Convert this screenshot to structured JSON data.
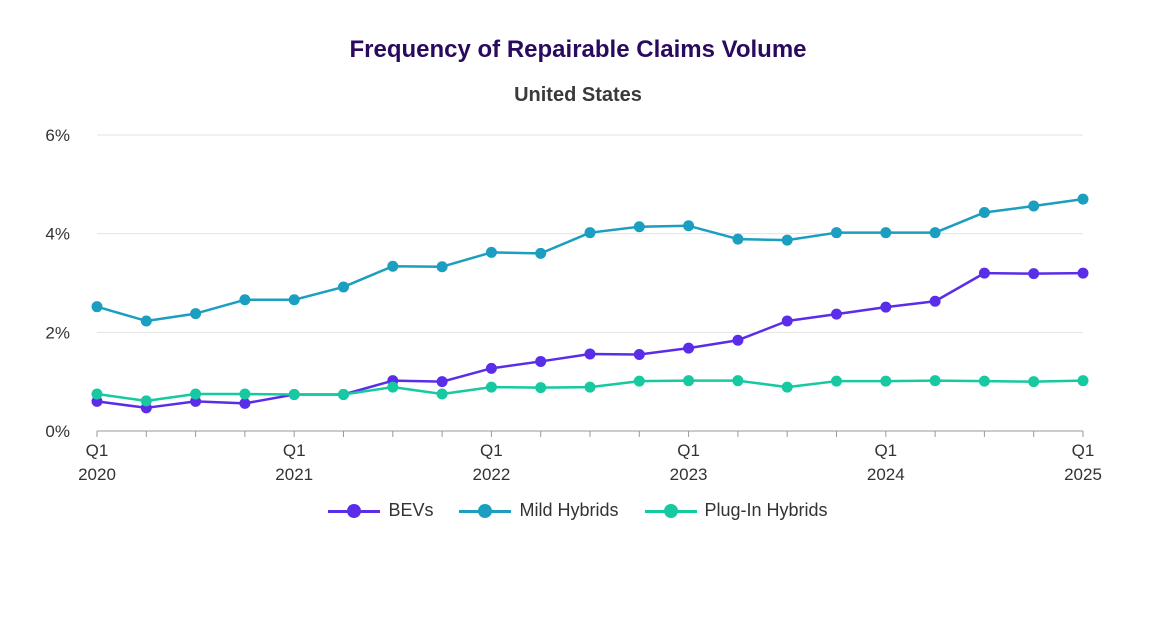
{
  "chart_data": {
    "type": "line",
    "title": "Frequency of Repairable Claims Volume",
    "subtitle": "United States",
    "x": [
      "Q1 2020",
      "Q2 2020",
      "Q3 2020",
      "Q4 2020",
      "Q1 2021",
      "Q2 2021",
      "Q3 2021",
      "Q4 2021",
      "Q1 2022",
      "Q2 2022",
      "Q3 2022",
      "Q4 2022",
      "Q1 2023",
      "Q2 2023",
      "Q3 2023",
      "Q4 2023",
      "Q1 2024",
      "Q2 2024",
      "Q3 2024",
      "Q4 2024",
      "Q1 2025"
    ],
    "x_tick_labels": [
      {
        "index": 0,
        "top": "Q1",
        "bottom": "2020"
      },
      {
        "index": 4,
        "top": "Q1",
        "bottom": "2021"
      },
      {
        "index": 8,
        "top": "Q1",
        "bottom": "2022"
      },
      {
        "index": 12,
        "top": "Q1",
        "bottom": "2023"
      },
      {
        "index": 16,
        "top": "Q1",
        "bottom": "2024"
      },
      {
        "index": 20,
        "top": "Q1",
        "bottom": "2025"
      }
    ],
    "y_ticks": [
      0,
      2,
      4,
      6
    ],
    "y_tick_labels": [
      "0%",
      "2%",
      "4%",
      "6%"
    ],
    "ylim": [
      0,
      6
    ],
    "grid": "horizontal",
    "legend_position": "bottom",
    "series": [
      {
        "name": "BEVs",
        "color": "#5a2ee8",
        "values": [
          0.6,
          0.47,
          0.6,
          0.56,
          0.74,
          0.74,
          1.02,
          1.0,
          1.27,
          1.41,
          1.56,
          1.55,
          1.68,
          1.84,
          2.23,
          2.37,
          2.51,
          2.63,
          3.2,
          3.19,
          3.2
        ]
      },
      {
        "name": "Mild Hybrids",
        "color": "#1b9ebf",
        "values": [
          2.52,
          2.23,
          2.38,
          2.66,
          2.66,
          2.92,
          3.34,
          3.33,
          3.62,
          3.6,
          4.02,
          4.14,
          4.16,
          3.89,
          3.87,
          4.02,
          4.02,
          4.02,
          4.43,
          4.56,
          4.7
        ]
      },
      {
        "name": "Plug-In Hybrids",
        "color": "#17c9a0",
        "values": [
          0.75,
          0.61,
          0.75,
          0.75,
          0.74,
          0.74,
          0.89,
          0.75,
          0.89,
          0.88,
          0.89,
          1.01,
          1.02,
          1.02,
          0.89,
          1.01,
          1.01,
          1.02,
          1.01,
          1.0,
          1.02
        ]
      }
    ]
  }
}
